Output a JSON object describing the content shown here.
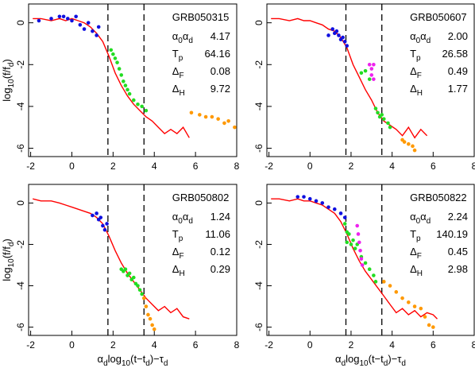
{
  "chart_data": [
    {
      "type": "scatter",
      "title": "GRB050315",
      "ylabel": [
        "log",
        "10",
        "(f/f",
        "d",
        ")"
      ],
      "xlim": [
        -2.1,
        8
      ],
      "ylim": [
        -6.4,
        0.9
      ],
      "xticks": [
        -2,
        0,
        2,
        4,
        6,
        8
      ],
      "yticks": [
        0,
        -2,
        -4,
        -6
      ],
      "vlines": [
        1.75,
        3.5
      ],
      "params": [
        {
          "label": [
            "α",
            "0",
            "α",
            "d"
          ],
          "value": 4.17
        },
        {
          "label": [
            "T",
            "p"
          ],
          "value": 64.16
        },
        {
          "label": [
            "Δ",
            "F"
          ],
          "value": 0.08
        },
        {
          "label": [
            "Δ",
            "H"
          ],
          "value": 9.72
        }
      ],
      "series": [
        {
          "mode": "line",
          "color": "#ff0000",
          "x": [
            -1.9,
            -1.5,
            -1,
            -0.6,
            -0.3,
            0,
            0.3,
            0.6,
            0.9,
            1.2,
            1.5,
            1.8,
            2.1,
            2.4,
            2.7,
            3,
            3.3,
            3.6,
            3.9,
            4.2,
            4.5,
            4.8,
            5.1,
            5.4,
            5.7
          ],
          "y": [
            0.2,
            0.2,
            0.1,
            0.2,
            0.1,
            0.2,
            0.1,
            0,
            -0.2,
            -0.5,
            -0.9,
            -1.6,
            -2.4,
            -3,
            -3.5,
            -3.9,
            -4.2,
            -4.5,
            -4.7,
            -5,
            -5.3,
            -5.1,
            -5.3,
            -5,
            -5.5
          ]
        },
        {
          "color": "#1010e0",
          "x": [
            -1.6,
            -1,
            -0.6,
            -0.4,
            -0.2,
            0,
            0.2,
            0.4,
            0.6,
            0.8,
            1,
            1.2,
            1.3
          ],
          "y": [
            0.1,
            0.2,
            0.3,
            0.3,
            0.2,
            0.1,
            0.3,
            -0.1,
            -0.3,
            0,
            -0.4,
            -0.6,
            -0.2
          ]
        },
        {
          "color": "#22dd22",
          "x": [
            1.9,
            2,
            2.1,
            2.2,
            2.3,
            2.4,
            2.5,
            2.6,
            2.7,
            2.8,
            3,
            3.2,
            3.4,
            3.6
          ],
          "y": [
            -1.3,
            -1.5,
            -1.7,
            -1.9,
            -2.2,
            -2.5,
            -2.8,
            -3,
            -3.2,
            -3.4,
            -3.7,
            -3.9,
            -4,
            -4.2
          ]
        },
        {
          "color": "#ff9900",
          "x": [
            5.8,
            6.2,
            6.5,
            6.8,
            7.1,
            7.4,
            7.6,
            7.9
          ],
          "y": [
            -4.3,
            -4.4,
            -4.5,
            -4.5,
            -4.6,
            -4.8,
            -4.7,
            -5
          ]
        }
      ]
    },
    {
      "type": "scatter",
      "title": "GRB050607",
      "xlim": [
        -2.1,
        8
      ],
      "ylim": [
        -6.4,
        0.9
      ],
      "xticks": [
        -2,
        0,
        2,
        4,
        6,
        8
      ],
      "yticks": [
        0,
        -2,
        -4,
        -6
      ],
      "vlines": [
        1.75,
        3.5
      ],
      "params": [
        {
          "label": [
            "α",
            "0",
            "α",
            "d"
          ],
          "value": 2,
          "value_label": "2.00"
        },
        {
          "label": [
            "T",
            "p"
          ],
          "value": 26.58
        },
        {
          "label": [
            "Δ",
            "F"
          ],
          "value": 0.49
        },
        {
          "label": [
            "Δ",
            "H"
          ],
          "value": 1.77
        }
      ],
      "series": [
        {
          "mode": "line",
          "color": "#ff0000",
          "x": [
            -1.9,
            -1.5,
            -1,
            -0.6,
            -0.3,
            0,
            0.3,
            0.6,
            0.9,
            1.2,
            1.5,
            1.8,
            2.1,
            2.4,
            2.7,
            3,
            3.3,
            3.6,
            3.9,
            4.2,
            4.5,
            4.8,
            5.1,
            5.4,
            5.7
          ],
          "y": [
            0.2,
            0.2,
            0.1,
            0.2,
            0.1,
            0.1,
            0,
            -0.1,
            -0.3,
            -0.4,
            -0.7,
            -1.2,
            -2,
            -2.6,
            -3.2,
            -3.7,
            -4.3,
            -4.7,
            -4.9,
            -5.1,
            -5.4,
            -5,
            -5.5,
            -5.1,
            -5.4
          ]
        },
        {
          "color": "#1010e0",
          "x": [
            0.9,
            1.1,
            1.2,
            1.3,
            1.4,
            1.5,
            1.6,
            1.7,
            1.8
          ],
          "y": [
            -0.6,
            -0.3,
            -0.5,
            -0.4,
            -0.6,
            -0.8,
            -0.7,
            -0.9,
            -1.1
          ]
        },
        {
          "color": "#ee22ee",
          "x": [
            2.9,
            3,
            3,
            3.1,
            3.1
          ],
          "y": [
            -2,
            -2.2,
            -2.5,
            -2.7,
            -2
          ]
        },
        {
          "color": "#22dd22",
          "x": [
            2.5,
            2.7,
            2.9,
            3.2,
            3.3,
            3.4,
            3.5,
            3.6,
            3.8,
            3.9
          ],
          "y": [
            -2.4,
            -2.3,
            -2.7,
            -4.1,
            -4.3,
            -4.5,
            -4.4,
            -4.6,
            -4.8,
            -5
          ]
        },
        {
          "color": "#ff9900",
          "x": [
            4.5,
            4.6,
            4.8,
            5,
            5.1
          ],
          "y": [
            -5.6,
            -5.7,
            -5.8,
            -5.9,
            -6.1
          ]
        }
      ]
    },
    {
      "type": "scatter",
      "title": "GRB050802",
      "ylabel": [
        "log",
        "10",
        "(f/f",
        "d",
        ")"
      ],
      "xlabel": [
        "α",
        "d",
        "log",
        "10",
        "(t−t",
        "d",
        ")−τ",
        "d"
      ],
      "xlim": [
        -2.1,
        8
      ],
      "ylim": [
        -6.4,
        0.9
      ],
      "xticks": [
        -2,
        0,
        2,
        4,
        6,
        8
      ],
      "yticks": [
        0,
        -2,
        -4,
        -6
      ],
      "vlines": [
        1.75,
        3.5
      ],
      "params": [
        {
          "label": [
            "α",
            "0",
            "α",
            "d"
          ],
          "value": 1.24
        },
        {
          "label": [
            "T",
            "p"
          ],
          "value": 11.06
        },
        {
          "label": [
            "Δ",
            "F"
          ],
          "value": 0.12
        },
        {
          "label": [
            "Δ",
            "H"
          ],
          "value": 0.29
        }
      ],
      "series": [
        {
          "mode": "line",
          "color": "#ff0000",
          "x": [
            -1.9,
            -1.5,
            -1,
            -0.6,
            -0.3,
            0,
            0.3,
            0.6,
            0.9,
            1.2,
            1.5,
            1.8,
            2.1,
            2.4,
            2.7,
            3,
            3.3,
            3.6,
            3.9,
            4.2,
            4.5,
            4.8,
            5.1,
            5.4,
            5.7
          ],
          "y": [
            0.2,
            0.1,
            0.1,
            0,
            -0.1,
            -0.2,
            -0.3,
            -0.4,
            -0.5,
            -0.7,
            -1,
            -1.6,
            -2.3,
            -2.9,
            -3.4,
            -3.8,
            -4.2,
            -4.6,
            -4.9,
            -5.2,
            -5,
            -5.3,
            -5.1,
            -5.5,
            -5.6
          ]
        },
        {
          "color": "#1010e0",
          "x": [
            1,
            1.2,
            1.3,
            1.4,
            1.5,
            1.6,
            1.7
          ],
          "y": [
            -0.6,
            -0.5,
            -0.8,
            -0.7,
            -1.1,
            -1.3,
            -1
          ]
        },
        {
          "color": "#22dd22",
          "x": [
            2.4,
            2.5,
            2.6,
            2.7,
            2.8,
            2.9,
            3,
            3.1,
            3.2,
            3.3,
            3.4
          ],
          "y": [
            -3.2,
            -3.3,
            -3.2,
            -3.5,
            -3.4,
            -3.7,
            -3.6,
            -3.9,
            -4,
            -4.2,
            -4.4
          ]
        },
        {
          "color": "#ff9900",
          "x": [
            3.5,
            3.6,
            3.7,
            3.8,
            3.9,
            4
          ],
          "y": [
            -4.6,
            -5,
            -5.4,
            -5.6,
            -5.9,
            -6.1
          ]
        }
      ]
    },
    {
      "type": "scatter",
      "title": "GRB050822",
      "xlabel": [
        "α",
        "d",
        "log",
        "10",
        "(t−t",
        "d",
        ")−τ",
        "d"
      ],
      "xlim": [
        -2.1,
        8
      ],
      "ylim": [
        -6.4,
        0.9
      ],
      "xticks": [
        -2,
        0,
        2,
        4,
        6,
        8
      ],
      "yticks": [
        0,
        -2,
        -4,
        -6
      ],
      "vlines": [
        1.75,
        3.5
      ],
      "params": [
        {
          "label": [
            "α",
            "0",
            "α",
            "d"
          ],
          "value": 2.24
        },
        {
          "label": [
            "T",
            "p"
          ],
          "value": 140.19
        },
        {
          "label": [
            "Δ",
            "F"
          ],
          "value": 0.45
        },
        {
          "label": [
            "Δ",
            "H"
          ],
          "value": 2.98
        }
      ],
      "series": [
        {
          "mode": "line",
          "color": "#ff0000",
          "x": [
            -1.9,
            -1.5,
            -1,
            -0.6,
            -0.3,
            0,
            0.3,
            0.6,
            0.9,
            1.2,
            1.5,
            1.8,
            2.1,
            2.4,
            2.7,
            3,
            3.3,
            3.6,
            3.9,
            4.2,
            4.5,
            4.8,
            5.1,
            5.4,
            5.7,
            6,
            6.2
          ],
          "y": [
            0.2,
            0.2,
            0.1,
            0.2,
            0.1,
            0.1,
            0,
            -0.1,
            -0.3,
            -0.5,
            -0.9,
            -1.5,
            -2.2,
            -2.8,
            -3.3,
            -3.7,
            -4.1,
            -4.5,
            -4.9,
            -5.3,
            -5.1,
            -5.4,
            -5.2,
            -5.5,
            -5.3,
            -5.4,
            -5.6
          ]
        },
        {
          "color": "#1010e0",
          "x": [
            -0.6,
            -0.3,
            0,
            0.3,
            0.6,
            0.9,
            1.2,
            1.5,
            1.7
          ],
          "y": [
            0.3,
            0.3,
            0.2,
            0.1,
            0,
            -0.2,
            -0.3,
            -0.5,
            -0.7
          ]
        },
        {
          "color": "#22dd22",
          "x": [
            1.7,
            1.8,
            1.8,
            1.9,
            2,
            2.1,
            2.2,
            2.3,
            2.5,
            2.7,
            2.9,
            3.1,
            3.2
          ],
          "y": [
            -1,
            -1.4,
            -1.9,
            -1.5,
            -2,
            -1.8,
            -2.2,
            -2,
            -2.6,
            -2.9,
            -3.2,
            -3.5,
            -3.8
          ]
        },
        {
          "color": "#ee22ee",
          "x": [
            2.3,
            2.35,
            2.4,
            2.45,
            2.5,
            2.55
          ],
          "y": [
            -1.1,
            -1.5,
            -1.9,
            -2.3,
            -2.7,
            -3
          ]
        },
        {
          "color": "#ff9900",
          "x": [
            3.6,
            3.9,
            4.2,
            4.5,
            4.8,
            5.1,
            5.4,
            5.6,
            5.8,
            6
          ],
          "y": [
            -3.8,
            -4,
            -4.3,
            -4.6,
            -4.8,
            -5,
            -5.1,
            -5.5,
            -5.9,
            -6
          ]
        }
      ]
    }
  ]
}
